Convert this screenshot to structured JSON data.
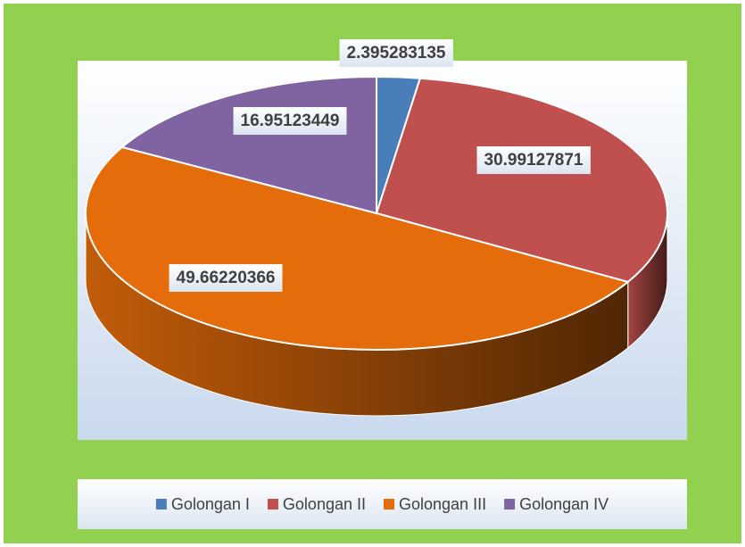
{
  "chart_data": {
    "type": "pie",
    "categories": [
      "Golongan I",
      "Golongan II",
      "Golongan III",
      "Golongan IV"
    ],
    "values": [
      2.395283135,
      30.99127871,
      49.66220366,
      16.95123449
    ],
    "colors": [
      "#4a7ebb",
      "#c0504d",
      "#e46c0a",
      "#8064a2"
    ],
    "legend": "bottom"
  }
}
